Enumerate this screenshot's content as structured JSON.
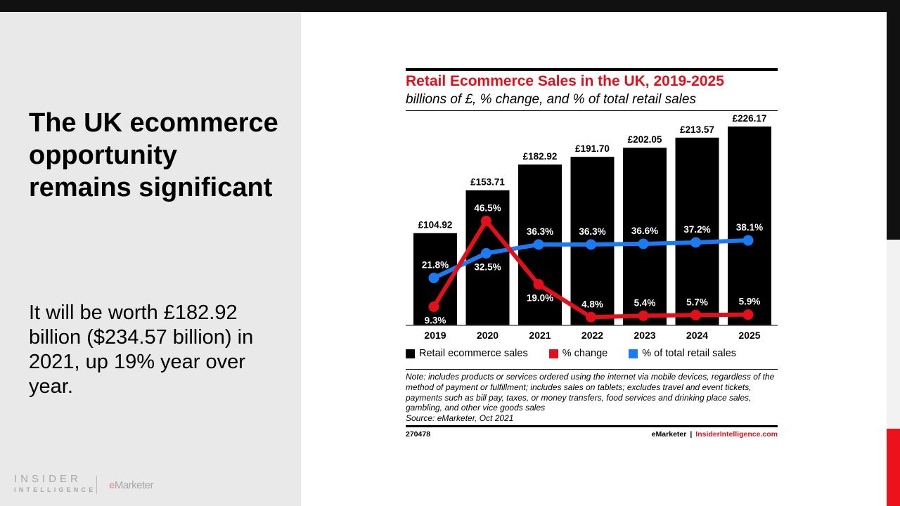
{
  "slide": {
    "headline": "The UK ecommerce opportunity remains significant",
    "body": "It will be worth £182.92 billion ($234.57 billion) in 2021, up 19% year over year.",
    "logo": {
      "insider": "INSIDER",
      "intelligence": "INTELLIGENCE",
      "emarketer_e": "e",
      "emarketer_rest": "Marketer"
    }
  },
  "colors": {
    "bar": "#000000",
    "change": "#e3101b",
    "share": "#1a7cf5",
    "title": "#e3101b"
  },
  "chart_data": {
    "type": "bar",
    "title": "Retail Ecommerce Sales in the UK, 2019-2025",
    "subtitle": "billions of £, % change, and % of total retail sales",
    "xlabel": "",
    "ylabel": "",
    "grid": false,
    "legend_position": "bottom",
    "categories": [
      "2019",
      "2020",
      "2021",
      "2022",
      "2023",
      "2024",
      "2025"
    ],
    "series": [
      {
        "name": "Retail ecommerce sales",
        "type": "bar",
        "values": [
          104.92,
          153.71,
          182.92,
          191.7,
          202.05,
          213.57,
          226.17
        ],
        "labels": [
          "£104.92",
          "£153.71",
          "£182.92",
          "£191.70",
          "£202.05",
          "£213.57",
          "£226.17"
        ]
      },
      {
        "name": "% change",
        "type": "line",
        "values": [
          9.3,
          46.5,
          19.0,
          4.8,
          5.4,
          5.7,
          5.9
        ],
        "labels": [
          "9.3%",
          "46.5%",
          "19.0%",
          "4.8%",
          "5.4%",
          "5.7%",
          "5.9%"
        ]
      },
      {
        "name": "% of total retail sales",
        "type": "line",
        "values": [
          21.8,
          32.5,
          36.3,
          36.3,
          36.6,
          37.2,
          38.1
        ],
        "labels": [
          "21.8%",
          "32.5%",
          "36.3%",
          "36.3%",
          "36.6%",
          "37.2%",
          "38.1%"
        ]
      }
    ],
    "note": "Note: includes products or services ordered using the internet via mobile devices, regardless of the method of payment or fulfillment; includes sales on tablets; excludes travel and event tickets, payments such as bill pay, taxes, or money transfers, food services and drinking place sales, gambling, and other vice goods sales",
    "source": "Source: eMarketer, Oct 2021",
    "chart_id": "270478",
    "brand_left": "eMarketer",
    "brand_sep": "|",
    "brand_right": "InsiderIntelligence.com"
  }
}
